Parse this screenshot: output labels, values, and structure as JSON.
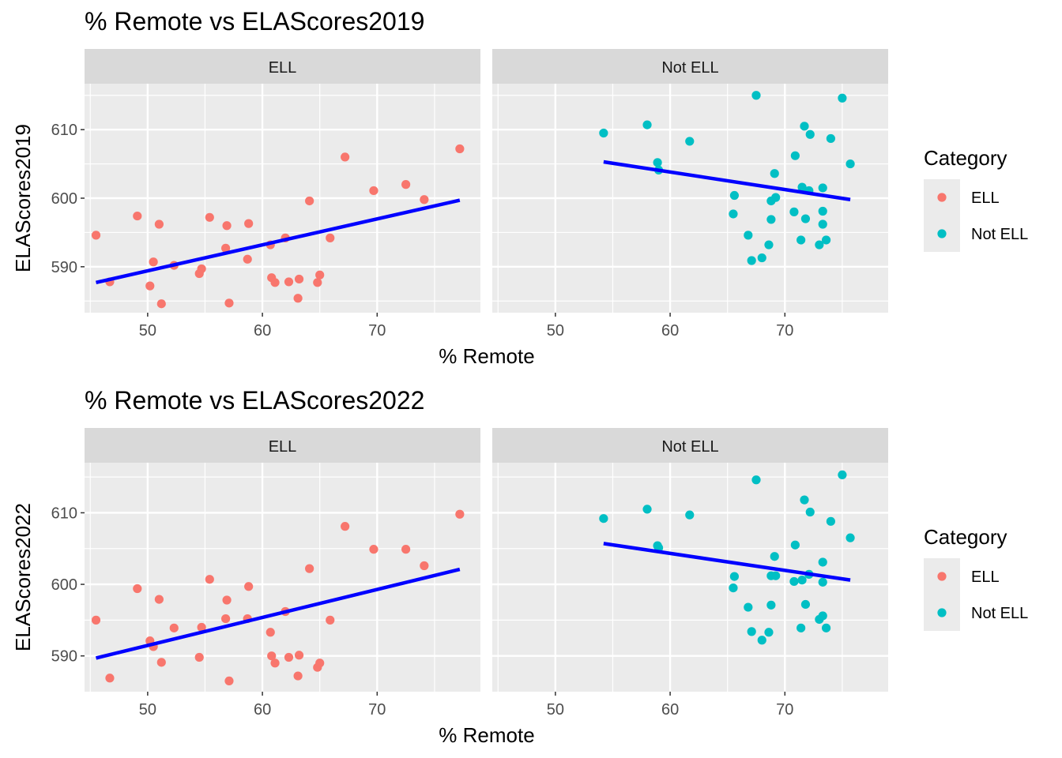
{
  "colors": {
    "ell": "#F8766D",
    "not_ell": "#00BFC4",
    "fit_line": "#0000FF",
    "panel_bg": "#EBEBEB",
    "strip_bg": "#D9D9D9",
    "grid": "#FFFFFF"
  },
  "legend": {
    "title": "Category",
    "items": [
      {
        "label": "ELL",
        "color": "#F8766D"
      },
      {
        "label": "Not ELL",
        "color": "#00BFC4"
      }
    ]
  },
  "chart_data": [
    {
      "type": "scatter",
      "title": "% Remote vs ELAScores2019",
      "xlabel": "% Remote",
      "ylabel": "ELAScores2019",
      "x_ticks": [
        50,
        60,
        70
      ],
      "y_ticks": [
        590,
        600,
        610
      ],
      "xlim": [
        44.5,
        79
      ],
      "ylim": [
        583.3,
        616.7
      ],
      "grid": true,
      "legend_position": "right",
      "panels": [
        {
          "strip": "ELL",
          "color": "#F8766D",
          "points": [
            [
              45.5,
              594.6
            ],
            [
              46.7,
              587.8
            ],
            [
              49.1,
              597.4
            ],
            [
              50.2,
              587.2
            ],
            [
              50.5,
              590.7
            ],
            [
              51.0,
              596.2
            ],
            [
              51.2,
              584.6
            ],
            [
              52.3,
              590.2
            ],
            [
              54.5,
              589.0
            ],
            [
              54.7,
              589.7
            ],
            [
              55.4,
              597.2
            ],
            [
              56.8,
              592.7
            ],
            [
              56.9,
              596.0
            ],
            [
              57.1,
              584.7
            ],
            [
              58.7,
              591.1
            ],
            [
              58.8,
              596.3
            ],
            [
              60.7,
              593.2
            ],
            [
              60.8,
              588.4
            ],
            [
              61.1,
              587.7
            ],
            [
              62.0,
              594.2
            ],
            [
              62.3,
              587.8
            ],
            [
              63.1,
              585.4
            ],
            [
              63.2,
              588.2
            ],
            [
              64.1,
              599.6
            ],
            [
              64.8,
              587.7
            ],
            [
              65.0,
              588.8
            ],
            [
              65.9,
              594.2
            ],
            [
              67.2,
              606.0
            ],
            [
              69.7,
              601.1
            ],
            [
              72.5,
              602.0
            ],
            [
              74.1,
              599.8
            ],
            [
              77.2,
              607.2
            ]
          ],
          "fit": {
            "x": [
              45.5,
              77.2
            ],
            "y": [
              587.7,
              599.7
            ]
          }
        },
        {
          "strip": "Not ELL",
          "color": "#00BFC4",
          "points": [
            [
              54.2,
              609.5
            ],
            [
              58.0,
              610.7
            ],
            [
              58.9,
              605.2
            ],
            [
              59.0,
              604.1
            ],
            [
              61.7,
              608.3
            ],
            [
              65.5,
              597.7
            ],
            [
              65.6,
              600.4
            ],
            [
              66.8,
              594.6
            ],
            [
              67.1,
              590.9
            ],
            [
              67.5,
              615.0
            ],
            [
              68.0,
              591.3
            ],
            [
              68.6,
              593.2
            ],
            [
              68.8,
              599.6
            ],
            [
              68.8,
              596.9
            ],
            [
              69.1,
              603.6
            ],
            [
              69.2,
              600.1
            ],
            [
              70.8,
              598.0
            ],
            [
              70.9,
              606.2
            ],
            [
              71.4,
              593.9
            ],
            [
              71.5,
              601.6
            ],
            [
              71.7,
              610.5
            ],
            [
              71.8,
              597.0
            ],
            [
              72.1,
              601.1
            ],
            [
              72.2,
              609.3
            ],
            [
              73.0,
              593.2
            ],
            [
              73.3,
              596.2
            ],
            [
              73.3,
              601.5
            ],
            [
              73.3,
              598.1
            ],
            [
              73.6,
              593.9
            ],
            [
              74.0,
              608.7
            ],
            [
              75.0,
              614.6
            ],
            [
              75.7,
              605.0
            ]
          ],
          "fit": {
            "x": [
              54.2,
              75.7
            ],
            "y": [
              605.3,
              599.8
            ]
          }
        }
      ]
    },
    {
      "type": "scatter",
      "title": "% Remote vs ELAScores2022",
      "xlabel": "% Remote",
      "ylabel": "ELAScores2022",
      "x_ticks": [
        50,
        60,
        70
      ],
      "y_ticks": [
        590,
        600,
        610
      ],
      "xlim": [
        44.5,
        79
      ],
      "ylim": [
        585,
        617
      ],
      "grid": true,
      "legend_position": "right",
      "panels": [
        {
          "strip": "ELL",
          "color": "#F8766D",
          "points": [
            [
              45.5,
              595.0
            ],
            [
              46.7,
              586.9
            ],
            [
              49.1,
              599.4
            ],
            [
              50.2,
              592.1
            ],
            [
              50.5,
              591.3
            ],
            [
              51.0,
              597.9
            ],
            [
              51.2,
              589.1
            ],
            [
              52.3,
              593.9
            ],
            [
              54.5,
              589.8
            ],
            [
              54.7,
              594.0
            ],
            [
              55.4,
              600.7
            ],
            [
              56.8,
              595.2
            ],
            [
              56.9,
              597.8
            ],
            [
              57.1,
              586.5
            ],
            [
              58.7,
              595.2
            ],
            [
              58.8,
              599.7
            ],
            [
              60.7,
              593.3
            ],
            [
              60.8,
              590.0
            ],
            [
              61.1,
              589.0
            ],
            [
              62.0,
              596.2
            ],
            [
              62.3,
              589.8
            ],
            [
              63.1,
              587.2
            ],
            [
              63.2,
              590.1
            ],
            [
              64.1,
              602.2
            ],
            [
              64.8,
              588.4
            ],
            [
              65.0,
              589.0
            ],
            [
              65.9,
              595.0
            ],
            [
              67.2,
              608.1
            ],
            [
              69.7,
              604.9
            ],
            [
              72.5,
              604.9
            ],
            [
              74.1,
              602.6
            ],
            [
              77.2,
              609.8
            ]
          ],
          "fit": {
            "x": [
              45.5,
              77.2
            ],
            "y": [
              589.7,
              602.1
            ]
          }
        },
        {
          "strip": "Not ELL",
          "color": "#00BFC4",
          "points": [
            [
              54.2,
              609.2
            ],
            [
              58.0,
              610.5
            ],
            [
              58.9,
              605.4
            ],
            [
              59.0,
              605.1
            ],
            [
              61.7,
              609.7
            ],
            [
              65.5,
              599.5
            ],
            [
              65.6,
              601.1
            ],
            [
              66.8,
              596.8
            ],
            [
              67.1,
              593.4
            ],
            [
              67.5,
              614.6
            ],
            [
              68.0,
              592.2
            ],
            [
              68.6,
              593.3
            ],
            [
              68.8,
              601.2
            ],
            [
              68.8,
              597.1
            ],
            [
              69.1,
              603.9
            ],
            [
              69.2,
              601.2
            ],
            [
              70.8,
              600.4
            ],
            [
              70.9,
              605.5
            ],
            [
              71.4,
              593.9
            ],
            [
              71.5,
              600.6
            ],
            [
              71.7,
              611.8
            ],
            [
              71.8,
              597.2
            ],
            [
              72.1,
              601.4
            ],
            [
              72.2,
              610.1
            ],
            [
              73.0,
              595.1
            ],
            [
              73.3,
              595.6
            ],
            [
              73.3,
              603.1
            ],
            [
              73.3,
              600.3
            ],
            [
              73.6,
              593.9
            ],
            [
              74.0,
              608.8
            ],
            [
              75.0,
              615.3
            ],
            [
              75.7,
              606.5
            ]
          ],
          "fit": {
            "x": [
              54.2,
              75.7
            ],
            "y": [
              605.7,
              600.6
            ]
          }
        }
      ]
    }
  ]
}
